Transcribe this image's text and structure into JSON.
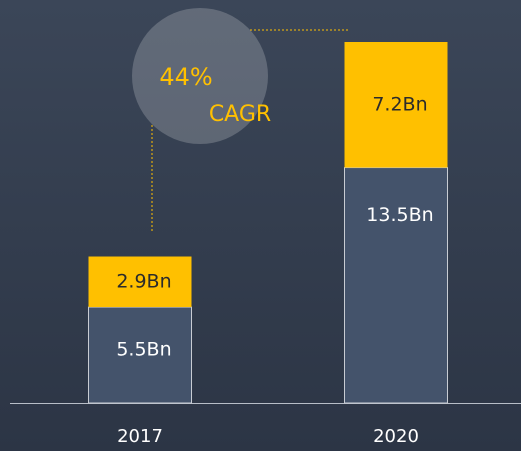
{
  "chart_data": {
    "type": "stacked_bar",
    "categories": [
      "2017",
      "2020"
    ],
    "series": [
      {
        "color": "#44536b",
        "label_color": "#ffffff",
        "values": [
          5.5,
          13.5
        ],
        "value_labels": [
          "5.5Bn",
          "13.5Bn"
        ]
      },
      {
        "color": "#ffc000",
        "label_color": "#2b2b2b",
        "values": [
          2.9,
          7.2
        ],
        "value_labels": [
          "2.9Bn",
          "7.2Bn"
        ]
      }
    ],
    "annotations": [
      "44%",
      "CAGR"
    ]
  }
}
